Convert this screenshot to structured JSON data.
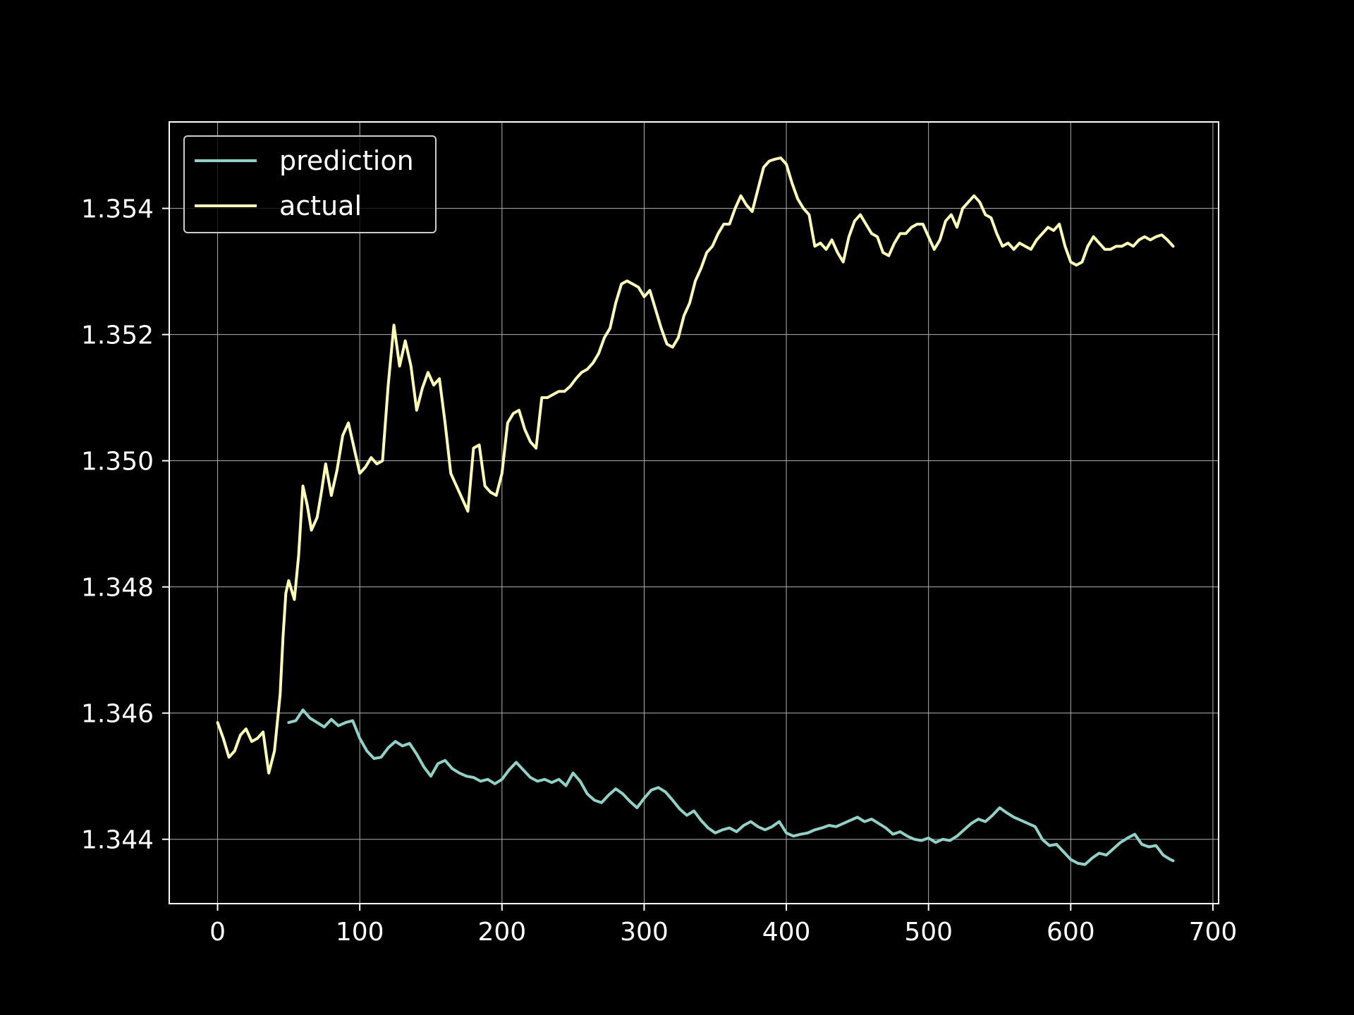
{
  "chart_data": {
    "type": "line",
    "title": "",
    "xlabel": "",
    "ylabel": "",
    "xlim": [
      -34,
      704
    ],
    "ylim": [
      1.34298,
      1.35537
    ],
    "x_ticks": [
      0,
      100,
      200,
      300,
      400,
      500,
      600,
      700
    ],
    "x_tick_labels": [
      "0",
      "100",
      "200",
      "300",
      "400",
      "500",
      "600",
      "700"
    ],
    "y_ticks": [
      1.344,
      1.346,
      1.348,
      1.35,
      1.352,
      1.354
    ],
    "y_tick_labels": [
      "1.344",
      "1.346",
      "1.348",
      "1.350",
      "1.352",
      "1.354"
    ],
    "grid": true,
    "legend_position": "upper-left",
    "background": "#000000",
    "series": [
      {
        "name": "prediction",
        "color": "#8dd3c7",
        "points": [
          [
            50,
            1.34585
          ],
          [
            55,
            1.34588
          ],
          [
            60,
            1.34605
          ],
          [
            65,
            1.34592
          ],
          [
            70,
            1.34585
          ],
          [
            75,
            1.34578
          ],
          [
            80,
            1.3459
          ],
          [
            85,
            1.3458
          ],
          [
            90,
            1.34585
          ],
          [
            95,
            1.34588
          ],
          [
            100,
            1.3456
          ],
          [
            105,
            1.3454
          ],
          [
            110,
            1.34528
          ],
          [
            115,
            1.3453
          ],
          [
            120,
            1.34545
          ],
          [
            125,
            1.34555
          ],
          [
            130,
            1.34548
          ],
          [
            135,
            1.34552
          ],
          [
            140,
            1.34535
          ],
          [
            145,
            1.34515
          ],
          [
            150,
            1.345
          ],
          [
            155,
            1.3452
          ],
          [
            160,
            1.34525
          ],
          [
            165,
            1.34512
          ],
          [
            170,
            1.34505
          ],
          [
            175,
            1.345
          ],
          [
            180,
            1.34498
          ],
          [
            185,
            1.34492
          ],
          [
            190,
            1.34495
          ],
          [
            195,
            1.34488
          ],
          [
            200,
            1.34495
          ],
          [
            205,
            1.3451
          ],
          [
            210,
            1.34522
          ],
          [
            215,
            1.3451
          ],
          [
            220,
            1.34498
          ],
          [
            225,
            1.34492
          ],
          [
            230,
            1.34495
          ],
          [
            235,
            1.3449
          ],
          [
            240,
            1.34495
          ],
          [
            245,
            1.34485
          ],
          [
            250,
            1.34505
          ],
          [
            255,
            1.34492
          ],
          [
            260,
            1.34472
          ],
          [
            265,
            1.34462
          ],
          [
            270,
            1.34458
          ],
          [
            275,
            1.3447
          ],
          [
            280,
            1.3448
          ],
          [
            285,
            1.34472
          ],
          [
            290,
            1.3446
          ],
          [
            295,
            1.3445
          ],
          [
            300,
            1.34465
          ],
          [
            305,
            1.34478
          ],
          [
            310,
            1.34482
          ],
          [
            315,
            1.34475
          ],
          [
            320,
            1.34462
          ],
          [
            325,
            1.34448
          ],
          [
            330,
            1.34438
          ],
          [
            335,
            1.34445
          ],
          [
            340,
            1.3443
          ],
          [
            345,
            1.34418
          ],
          [
            350,
            1.3441
          ],
          [
            355,
            1.34415
          ],
          [
            360,
            1.34418
          ],
          [
            365,
            1.34412
          ],
          [
            370,
            1.34422
          ],
          [
            375,
            1.34428
          ],
          [
            380,
            1.3442
          ],
          [
            385,
            1.34415
          ],
          [
            390,
            1.3442
          ],
          [
            395,
            1.34428
          ],
          [
            400,
            1.3441
          ],
          [
            405,
            1.34405
          ],
          [
            410,
            1.34408
          ],
          [
            415,
            1.3441
          ],
          [
            420,
            1.34415
          ],
          [
            425,
            1.34418
          ],
          [
            430,
            1.34422
          ],
          [
            435,
            1.3442
          ],
          [
            440,
            1.34425
          ],
          [
            445,
            1.3443
          ],
          [
            450,
            1.34435
          ],
          [
            455,
            1.34428
          ],
          [
            460,
            1.34432
          ],
          [
            465,
            1.34425
          ],
          [
            470,
            1.34418
          ],
          [
            475,
            1.34408
          ],
          [
            480,
            1.34412
          ],
          [
            485,
            1.34405
          ],
          [
            490,
            1.344
          ],
          [
            495,
            1.34398
          ],
          [
            500,
            1.34402
          ],
          [
            505,
            1.34395
          ],
          [
            510,
            1.344
          ],
          [
            515,
            1.34398
          ],
          [
            520,
            1.34405
          ],
          [
            525,
            1.34415
          ],
          [
            530,
            1.34425
          ],
          [
            535,
            1.34432
          ],
          [
            540,
            1.34428
          ],
          [
            545,
            1.34438
          ],
          [
            550,
            1.3445
          ],
          [
            555,
            1.34442
          ],
          [
            560,
            1.34435
          ],
          [
            565,
            1.3443
          ],
          [
            570,
            1.34425
          ],
          [
            575,
            1.3442
          ],
          [
            580,
            1.344
          ],
          [
            585,
            1.3439
          ],
          [
            590,
            1.34392
          ],
          [
            595,
            1.3438
          ],
          [
            600,
            1.34368
          ],
          [
            605,
            1.34362
          ],
          [
            610,
            1.3436
          ],
          [
            615,
            1.3437
          ],
          [
            620,
            1.34378
          ],
          [
            625,
            1.34375
          ],
          [
            630,
            1.34385
          ],
          [
            635,
            1.34395
          ],
          [
            640,
            1.34402
          ],
          [
            645,
            1.34408
          ],
          [
            650,
            1.34392
          ],
          [
            655,
            1.34388
          ],
          [
            660,
            1.3439
          ],
          [
            665,
            1.34375
          ],
          [
            670,
            1.34368
          ],
          [
            672,
            1.34366
          ]
        ]
      },
      {
        "name": "actual",
        "color": "#ffffb3",
        "points": [
          [
            0,
            1.34585
          ],
          [
            4,
            1.3456
          ],
          [
            8,
            1.3453
          ],
          [
            12,
            1.3454
          ],
          [
            16,
            1.34565
          ],
          [
            20,
            1.34575
          ],
          [
            24,
            1.34555
          ],
          [
            28,
            1.3456
          ],
          [
            32,
            1.3457
          ],
          [
            36,
            1.34505
          ],
          [
            40,
            1.3454
          ],
          [
            44,
            1.3463
          ],
          [
            46,
            1.3472
          ],
          [
            48,
            1.3479
          ],
          [
            50,
            1.3481
          ],
          [
            54,
            1.3478
          ],
          [
            57,
            1.3485
          ],
          [
            60,
            1.3496
          ],
          [
            63,
            1.3493
          ],
          [
            66,
            1.3489
          ],
          [
            70,
            1.3491
          ],
          [
            73,
            1.3495
          ],
          [
            76,
            1.34995
          ],
          [
            80,
            1.34945
          ],
          [
            84,
            1.34985
          ],
          [
            88,
            1.3504
          ],
          [
            92,
            1.3506
          ],
          [
            96,
            1.3502
          ],
          [
            100,
            1.3498
          ],
          [
            104,
            1.3499
          ],
          [
            108,
            1.35005
          ],
          [
            112,
            1.34995
          ],
          [
            116,
            1.35
          ],
          [
            120,
            1.3512
          ],
          [
            124,
            1.35215
          ],
          [
            128,
            1.3515
          ],
          [
            132,
            1.3519
          ],
          [
            136,
            1.3515
          ],
          [
            140,
            1.3508
          ],
          [
            144,
            1.35115
          ],
          [
            148,
            1.3514
          ],
          [
            152,
            1.3512
          ],
          [
            156,
            1.3513
          ],
          [
            160,
            1.3506
          ],
          [
            164,
            1.3498
          ],
          [
            168,
            1.3496
          ],
          [
            172,
            1.3494
          ],
          [
            176,
            1.3492
          ],
          [
            180,
            1.3502
          ],
          [
            184,
            1.35025
          ],
          [
            188,
            1.3496
          ],
          [
            192,
            1.3495
          ],
          [
            196,
            1.34945
          ],
          [
            200,
            1.3498
          ],
          [
            204,
            1.3506
          ],
          [
            208,
            1.35075
          ],
          [
            212,
            1.3508
          ],
          [
            216,
            1.3505
          ],
          [
            220,
            1.3503
          ],
          [
            224,
            1.3502
          ],
          [
            228,
            1.351
          ],
          [
            232,
            1.351
          ],
          [
            236,
            1.35105
          ],
          [
            240,
            1.3511
          ],
          [
            244,
            1.3511
          ],
          [
            248,
            1.35118
          ],
          [
            252,
            1.3513
          ],
          [
            256,
            1.3514
          ],
          [
            260,
            1.35145
          ],
          [
            264,
            1.35155
          ],
          [
            268,
            1.3517
          ],
          [
            272,
            1.35195
          ],
          [
            276,
            1.3521
          ],
          [
            280,
            1.3525
          ],
          [
            284,
            1.3528
          ],
          [
            288,
            1.35285
          ],
          [
            292,
            1.3528
          ],
          [
            296,
            1.35275
          ],
          [
            300,
            1.3526
          ],
          [
            304,
            1.3527
          ],
          [
            308,
            1.3524
          ],
          [
            312,
            1.3521
          ],
          [
            316,
            1.35185
          ],
          [
            320,
            1.3518
          ],
          [
            324,
            1.35195
          ],
          [
            328,
            1.3523
          ],
          [
            332,
            1.3525
          ],
          [
            336,
            1.35285
          ],
          [
            340,
            1.35305
          ],
          [
            344,
            1.3533
          ],
          [
            348,
            1.3534
          ],
          [
            352,
            1.3536
          ],
          [
            356,
            1.35375
          ],
          [
            360,
            1.35375
          ],
          [
            364,
            1.354
          ],
          [
            368,
            1.3542
          ],
          [
            372,
            1.35405
          ],
          [
            376,
            1.35395
          ],
          [
            380,
            1.3543
          ],
          [
            384,
            1.35465
          ],
          [
            388,
            1.35475
          ],
          [
            392,
            1.35478
          ],
          [
            396,
            1.3548
          ],
          [
            400,
            1.3547
          ],
          [
            404,
            1.3544
          ],
          [
            408,
            1.35415
          ],
          [
            412,
            1.354
          ],
          [
            416,
            1.3539
          ],
          [
            420,
            1.3534
          ],
          [
            424,
            1.35345
          ],
          [
            428,
            1.35335
          ],
          [
            432,
            1.3535
          ],
          [
            436,
            1.3533
          ],
          [
            440,
            1.35315
          ],
          [
            444,
            1.35355
          ],
          [
            448,
            1.3538
          ],
          [
            452,
            1.3539
          ],
          [
            456,
            1.35375
          ],
          [
            460,
            1.3536
          ],
          [
            464,
            1.35355
          ],
          [
            468,
            1.3533
          ],
          [
            472,
            1.35325
          ],
          [
            476,
            1.35345
          ],
          [
            480,
            1.3536
          ],
          [
            484,
            1.3536
          ],
          [
            488,
            1.3537
          ],
          [
            492,
            1.35375
          ],
          [
            496,
            1.35375
          ],
          [
            500,
            1.35355
          ],
          [
            504,
            1.35335
          ],
          [
            508,
            1.3535
          ],
          [
            512,
            1.3538
          ],
          [
            516,
            1.3539
          ],
          [
            520,
            1.3537
          ],
          [
            524,
            1.354
          ],
          [
            528,
            1.3541
          ],
          [
            532,
            1.3542
          ],
          [
            536,
            1.3541
          ],
          [
            540,
            1.3539
          ],
          [
            544,
            1.35385
          ],
          [
            548,
            1.3536
          ],
          [
            552,
            1.3534
          ],
          [
            556,
            1.35345
          ],
          [
            560,
            1.35335
          ],
          [
            564,
            1.35345
          ],
          [
            568,
            1.3534
          ],
          [
            572,
            1.35335
          ],
          [
            576,
            1.3535
          ],
          [
            580,
            1.3536
          ],
          [
            584,
            1.3537
          ],
          [
            588,
            1.35365
          ],
          [
            592,
            1.35375
          ],
          [
            596,
            1.3534
          ],
          [
            600,
            1.35315
          ],
          [
            604,
            1.3531
          ],
          [
            608,
            1.35315
          ],
          [
            612,
            1.3534
          ],
          [
            616,
            1.35355
          ],
          [
            620,
            1.35345
          ],
          [
            624,
            1.35335
          ],
          [
            628,
            1.35335
          ],
          [
            632,
            1.3534
          ],
          [
            636,
            1.3534
          ],
          [
            640,
            1.35345
          ],
          [
            644,
            1.3534
          ],
          [
            648,
            1.3535
          ],
          [
            652,
            1.35355
          ],
          [
            656,
            1.3535
          ],
          [
            660,
            1.35355
          ],
          [
            664,
            1.35358
          ],
          [
            668,
            1.3535
          ],
          [
            672,
            1.3534
          ]
        ]
      }
    ]
  }
}
